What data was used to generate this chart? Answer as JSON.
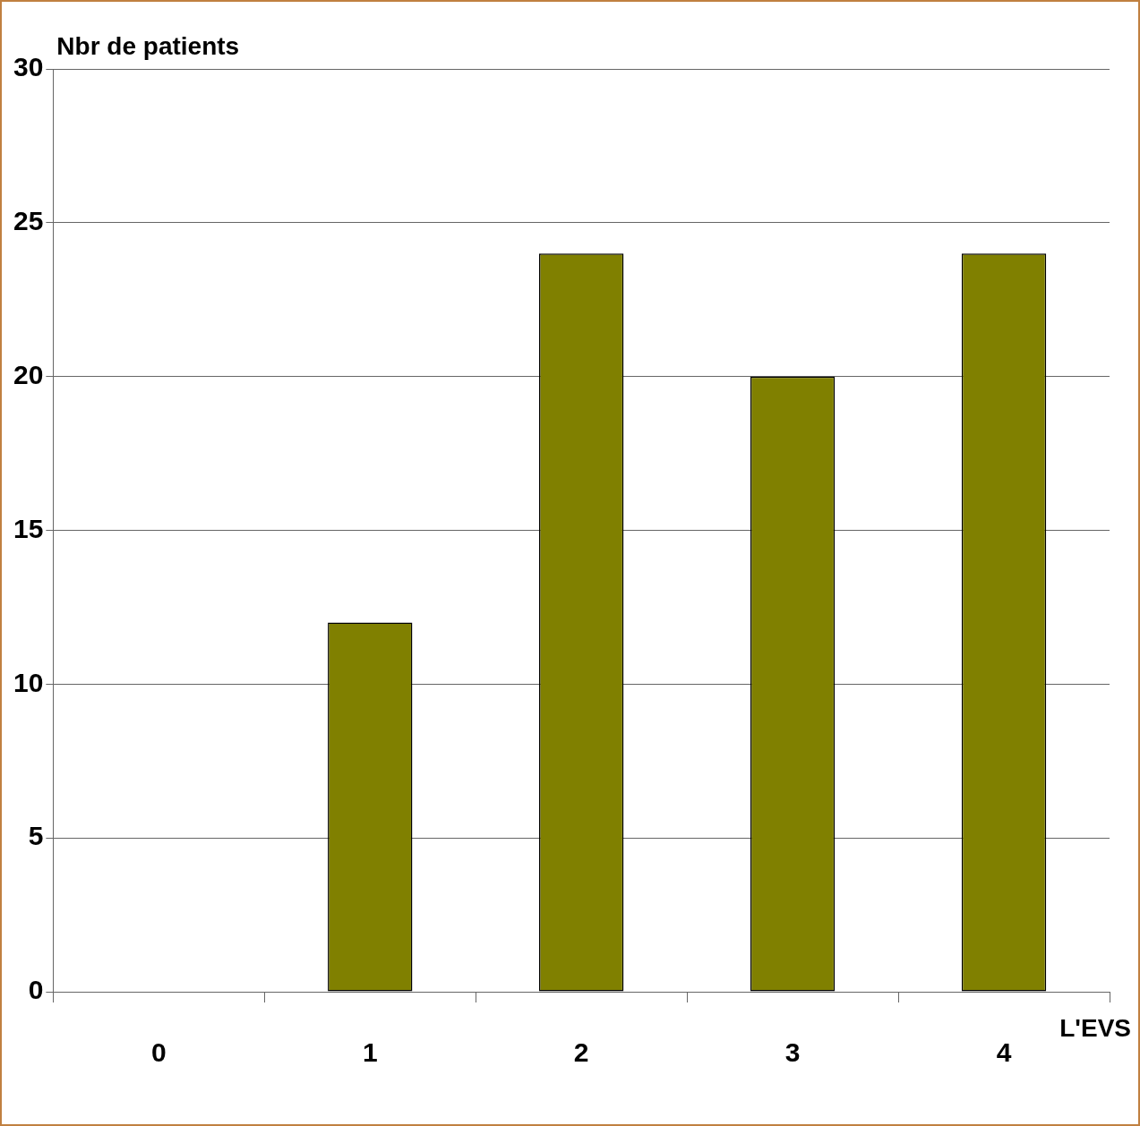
{
  "chart_data": {
    "type": "bar",
    "ylabel": "Nbr de patients",
    "xlabel": "L'EVS",
    "categories": [
      "0",
      "1",
      "2",
      "3",
      "4"
    ],
    "values": [
      0,
      12,
      24,
      20,
      24
    ],
    "color": "#808000",
    "ylim": [
      0,
      30
    ],
    "yticks": [
      0,
      5,
      10,
      15,
      20,
      25,
      30
    ],
    "grid": "y",
    "legend": false
  }
}
